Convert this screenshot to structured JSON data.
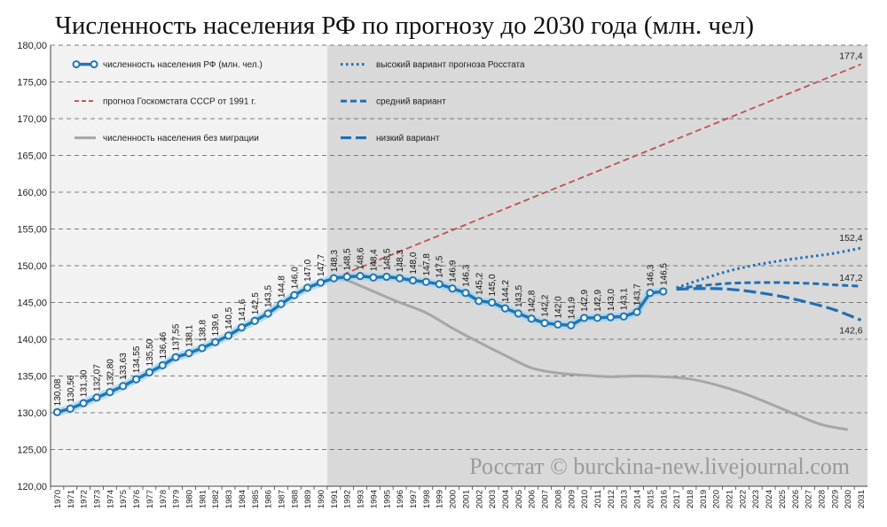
{
  "colors": {
    "main": "#1f77b4",
    "gosstat": "#c0504d",
    "no_migration": "#a6a6a6",
    "forecast": "#1f6fb5",
    "bg_left": "#f2f2f2",
    "bg_right": "#d9d9d9"
  },
  "chart_data": {
    "type": "line",
    "title": "Численность населения РФ по прогнозу до 2030 года (млн. чел)",
    "ylim": [
      120,
      180
    ],
    "yticks": [
      "120,00",
      "125,00",
      "130,00",
      "135,00",
      "140,00",
      "145,00",
      "150,00",
      "155,00",
      "160,00",
      "165,00",
      "170,00",
      "175,00",
      "180,00"
    ],
    "ytick_values": [
      120,
      125,
      130,
      135,
      140,
      145,
      150,
      155,
      160,
      165,
      170,
      175,
      180
    ],
    "x_years": [
      1970,
      1971,
      1972,
      1973,
      1974,
      1975,
      1976,
      1977,
      1978,
      1979,
      1980,
      1981,
      1982,
      1983,
      1984,
      1985,
      1986,
      1987,
      1988,
      1989,
      1990,
      1991,
      1992,
      1993,
      1994,
      1995,
      1996,
      1997,
      1998,
      1999,
      2000,
      2001,
      2002,
      2003,
      2004,
      2005,
      2006,
      2007,
      2008,
      2009,
      2010,
      2011,
      2012,
      2013,
      2014,
      2015,
      2016,
      2017,
      2018,
      2019,
      2020,
      2021,
      2022,
      2023,
      2024,
      2025,
      2026,
      2027,
      2028,
      2029,
      2030,
      2031
    ],
    "shade_start_year": 1991,
    "series": [
      {
        "name": "численность населения РФ (млн. чел.)",
        "years": [
          1970,
          1971,
          1972,
          1973,
          1974,
          1975,
          1976,
          1977,
          1978,
          1979,
          1980,
          1981,
          1982,
          1983,
          1984,
          1985,
          1986,
          1987,
          1988,
          1989,
          1990,
          1991,
          1992,
          1993,
          1994,
          1995,
          1996,
          1997,
          1998,
          1999,
          2000,
          2001,
          2002,
          2003,
          2004,
          2005,
          2006,
          2007,
          2008,
          2009,
          2010,
          2011,
          2012,
          2013,
          2014,
          2015,
          2016
        ],
        "values": [
          130.08,
          130.56,
          131.3,
          132.07,
          132.8,
          133.63,
          134.55,
          135.5,
          136.46,
          137.55,
          138.1,
          138.8,
          139.6,
          140.5,
          141.6,
          142.5,
          143.5,
          144.8,
          146.0,
          147.0,
          147.7,
          148.3,
          148.5,
          148.6,
          148.4,
          148.5,
          148.3,
          148.0,
          147.8,
          147.5,
          146.9,
          146.3,
          145.2,
          145.0,
          144.2,
          143.5,
          142.8,
          142.2,
          142.0,
          141.9,
          142.9,
          142.9,
          143.0,
          143.1,
          143.7,
          146.3,
          146.5
        ],
        "labels": [
          "130,08",
          "130,56",
          "131,30",
          "132,07",
          "132,80",
          "133,63",
          "134,55",
          "135,50",
          "136,46",
          "137,55",
          "138,1",
          "138,8",
          "139,6",
          "140,5",
          "141,6",
          "142,5",
          "143,5",
          "144,8",
          "146,0",
          "147,0",
          "147,7",
          "148,3",
          "148,5",
          "148,6",
          "148,4",
          "148,5",
          "148,3",
          "148,0",
          "147,8",
          "147,5",
          "146,9",
          "146,3",
          "145,2",
          "145,0",
          "144,2",
          "143,5",
          "142,8",
          "142,2",
          "142,0",
          "141,9",
          "142,9",
          "142,9",
          "143,0",
          "143,1",
          "143,7",
          "146,3",
          "146,5"
        ]
      },
      {
        "name": "прогноз Госкомстата СССР от 1991 г.",
        "years": [
          1991,
          2031
        ],
        "values": [
          148.3,
          177.4
        ]
      },
      {
        "name": "численность населения без миграции",
        "years": [
          1991,
          1992,
          1994,
          1996,
          1998,
          2000,
          2002,
          2004,
          2006,
          2008,
          2010,
          2012,
          2014,
          2016,
          2018,
          2020,
          2022,
          2024,
          2026,
          2028,
          2030
        ],
        "values": [
          148.3,
          148.0,
          146.5,
          145.0,
          143.6,
          141.5,
          139.6,
          137.8,
          136.1,
          135.4,
          135.1,
          134.9,
          135.0,
          134.9,
          134.6,
          133.8,
          132.7,
          131.3,
          129.8,
          128.4,
          127.7
        ]
      },
      {
        "name": "высокий вариант прогноза Росстата",
        "years": [
          2017,
          2019,
          2021,
          2023,
          2025,
          2027,
          2029,
          2031
        ],
        "values": [
          147.0,
          148.2,
          149.3,
          150.1,
          150.7,
          151.2,
          151.7,
          152.4
        ]
      },
      {
        "name": "средний вариант",
        "years": [
          2017,
          2019,
          2021,
          2023,
          2025,
          2027,
          2029,
          2031
        ],
        "values": [
          146.9,
          147.3,
          147.6,
          147.7,
          147.7,
          147.6,
          147.4,
          147.2
        ]
      },
      {
        "name": "низкий вариант",
        "years": [
          2017,
          2019,
          2021,
          2023,
          2025,
          2027,
          2029,
          2031
        ],
        "values": [
          146.8,
          146.9,
          146.8,
          146.4,
          145.8,
          145.0,
          144.0,
          142.6
        ]
      }
    ],
    "end_labels": {
      "gosstat": "177,4",
      "high": "152,4",
      "mid": "147,2",
      "low": "142,6"
    },
    "legend": [
      {
        "key": "main",
        "text": "численность населения РФ (млн. чел.)"
      },
      {
        "key": "gosstat",
        "text": "прогноз Госкомстата СССР от 1991 г."
      },
      {
        "key": "nomig",
        "text": "численность населения без миграции"
      },
      {
        "key": "high",
        "text": "высокий вариант прогноза Росстата"
      },
      {
        "key": "mid",
        "text": "средний вариант"
      },
      {
        "key": "low",
        "text": "низкий вариант"
      }
    ],
    "watermark": "Росстат © burckina-new.livejournal.com"
  }
}
